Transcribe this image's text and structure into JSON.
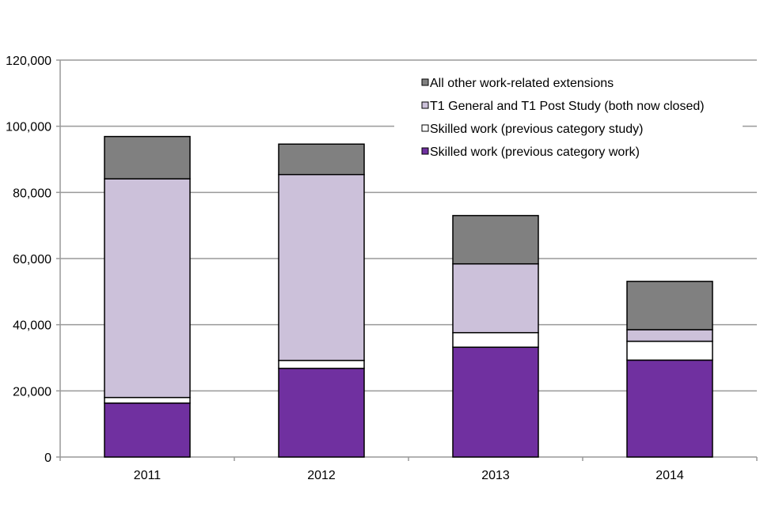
{
  "chart_data": {
    "type": "bar",
    "stacked": true,
    "title": "",
    "xlabel": "",
    "ylabel": "",
    "categories": [
      "2011",
      "2012",
      "2013",
      "2014"
    ],
    "ylim": [
      0,
      120000
    ],
    "yticks": [
      0,
      20000,
      40000,
      60000,
      80000,
      100000,
      120000
    ],
    "ytick_labels": [
      "0",
      "20,000",
      "40,000",
      "60,000",
      "80,000",
      "100,000",
      "120,000"
    ],
    "grid": true,
    "legend_position": "top-right",
    "series": [
      {
        "name": "Skilled work (previous category work)",
        "color": "#7030A0",
        "values": [
          16300,
          26800,
          33200,
          29300
        ]
      },
      {
        "name": "Skilled work (previous category study)",
        "color": "#FFFFFF",
        "values": [
          1700,
          2400,
          4400,
          5700
        ]
      },
      {
        "name": "T1 General and T1 Post Study (both now closed)",
        "color": "#CCC1DA",
        "values": [
          66100,
          56200,
          20800,
          3500
        ]
      },
      {
        "name": "All other work-related extensions",
        "color": "#808080",
        "values": [
          12800,
          9200,
          14600,
          14600
        ]
      }
    ],
    "legend_order": [
      3,
      2,
      1,
      0
    ]
  }
}
